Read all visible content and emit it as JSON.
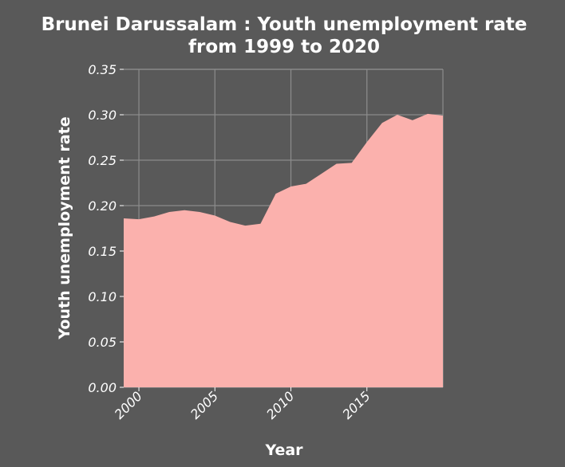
{
  "chart_data": {
    "type": "area",
    "title": [
      "Brunei Darussalam : Youth unemployment rate",
      "from 1999 to 2020"
    ],
    "xlabel": "Year",
    "ylabel": "Youth unemployment rate",
    "xlim": [
      1999,
      2020
    ],
    "ylim": [
      0,
      0.35
    ],
    "xticks": [
      2000,
      2005,
      2010,
      2015
    ],
    "yticks": [
      "0.00",
      "0.05",
      "0.10",
      "0.15",
      "0.20",
      "0.25",
      "0.30",
      "0.35"
    ],
    "grid": true,
    "series": [
      {
        "color": "#fbb1ad",
        "x": [
          1999,
          2000,
          2001,
          2002,
          2003,
          2004,
          2005,
          2006,
          2007,
          2008,
          2009,
          2010,
          2011,
          2012,
          2013,
          2014,
          2015,
          2016,
          2017,
          2018,
          2019,
          2020
        ],
        "y": [
          0.186,
          0.185,
          0.188,
          0.193,
          0.195,
          0.193,
          0.189,
          0.182,
          0.178,
          0.18,
          0.213,
          0.221,
          0.224,
          0.235,
          0.246,
          0.247,
          0.27,
          0.291,
          0.3,
          0.294,
          0.301,
          0.299
        ]
      }
    ]
  }
}
